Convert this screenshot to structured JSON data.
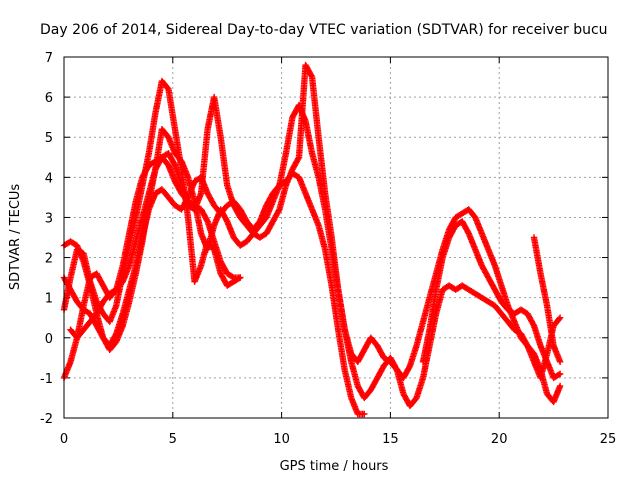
{
  "chart_data": {
    "type": "scatter",
    "title": "Day 206 of 2014, Sidereal Day-to-day VTEC variation (SDTVAR) for receiver bucu",
    "xlabel": "GPS time / hours",
    "ylabel": "SDTVAR / TECUs",
    "xlim": [
      0,
      25
    ],
    "ylim": [
      -2,
      7
    ],
    "xticks": [
      "0",
      "5",
      "10",
      "15",
      "20",
      "25"
    ],
    "yticks": [
      "-2",
      "-1",
      "0",
      "1",
      "2",
      "3",
      "4",
      "5",
      "6",
      "7"
    ],
    "grid": true,
    "marker": "+",
    "color": "#ff0000",
    "series": [
      {
        "points": [
          [
            0.0,
            0.7
          ],
          [
            0.3,
            1.5
          ],
          [
            0.6,
            2.2
          ],
          [
            0.9,
            2.1
          ],
          [
            1.2,
            1.4
          ],
          [
            1.5,
            0.9
          ],
          [
            1.8,
            0.6
          ],
          [
            2.1,
            0.4
          ],
          [
            2.4,
            0.8
          ],
          [
            2.7,
            1.6
          ],
          [
            3.0,
            2.3
          ],
          [
            3.3,
            3.0
          ],
          [
            3.6,
            3.8
          ],
          [
            3.9,
            4.6
          ],
          [
            4.2,
            5.6
          ],
          [
            4.5,
            6.4
          ],
          [
            4.8,
            6.2
          ],
          [
            5.1,
            5.2
          ],
          [
            5.4,
            4.2
          ],
          [
            5.7,
            3.0
          ],
          [
            6.0,
            1.4
          ],
          [
            6.3,
            1.8
          ],
          [
            6.6,
            2.4
          ],
          [
            6.9,
            2.2
          ],
          [
            7.2,
            1.6
          ],
          [
            7.5,
            1.3
          ],
          [
            7.8,
            1.4
          ],
          [
            8.1,
            1.5
          ]
        ]
      },
      {
        "points": [
          [
            0.0,
            -1.0
          ],
          [
            0.3,
            -0.6
          ],
          [
            0.6,
            0.0
          ],
          [
            0.9,
            0.8
          ],
          [
            1.2,
            1.5
          ],
          [
            1.5,
            1.6
          ],
          [
            1.8,
            1.3
          ],
          [
            2.1,
            1.0
          ],
          [
            2.4,
            1.2
          ],
          [
            2.7,
            1.8
          ],
          [
            3.0,
            2.6
          ],
          [
            3.3,
            3.4
          ],
          [
            3.6,
            4.0
          ],
          [
            3.9,
            4.3
          ],
          [
            4.2,
            4.4
          ],
          [
            4.5,
            4.5
          ],
          [
            4.8,
            4.6
          ],
          [
            5.1,
            4.3
          ],
          [
            5.4,
            3.8
          ],
          [
            5.7,
            3.3
          ],
          [
            6.0,
            3.2
          ],
          [
            6.3,
            3.6
          ],
          [
            6.6,
            5.2
          ],
          [
            6.9,
            6.0
          ],
          [
            7.2,
            5.0
          ],
          [
            7.5,
            3.8
          ],
          [
            7.8,
            3.3
          ],
          [
            8.1,
            3.0
          ],
          [
            8.4,
            2.8
          ],
          [
            8.7,
            2.6
          ],
          [
            9.0,
            2.5
          ],
          [
            9.3,
            2.6
          ],
          [
            9.6,
            2.9
          ],
          [
            9.9,
            3.2
          ],
          [
            10.2,
            3.8
          ],
          [
            10.5,
            4.2
          ],
          [
            10.8,
            4.5
          ],
          [
            11.1,
            6.8
          ],
          [
            11.4,
            6.5
          ],
          [
            11.7,
            5.0
          ],
          [
            12.0,
            3.6
          ],
          [
            12.3,
            2.5
          ],
          [
            12.6,
            1.2
          ],
          [
            12.9,
            0.2
          ],
          [
            13.2,
            -0.6
          ],
          [
            13.5,
            -1.2
          ],
          [
            13.8,
            -1.5
          ],
          [
            14.1,
            -1.3
          ],
          [
            14.4,
            -1.0
          ],
          [
            14.7,
            -0.7
          ],
          [
            15.0,
            -0.5
          ],
          [
            15.3,
            -0.8
          ],
          [
            15.6,
            -1.4
          ],
          [
            15.9,
            -1.7
          ],
          [
            16.2,
            -1.5
          ],
          [
            16.5,
            -1.0
          ],
          [
            16.8,
            -0.2
          ],
          [
            17.1,
            0.6
          ],
          [
            17.4,
            1.2
          ],
          [
            17.7,
            1.3
          ],
          [
            18.0,
            1.2
          ],
          [
            18.3,
            1.3
          ],
          [
            18.6,
            1.2
          ],
          [
            18.9,
            1.1
          ],
          [
            19.2,
            1.0
          ],
          [
            19.5,
            0.9
          ],
          [
            19.8,
            0.8
          ],
          [
            20.1,
            0.6
          ],
          [
            20.4,
            0.4
          ],
          [
            20.7,
            0.2
          ],
          [
            21.0,
            0.1
          ],
          [
            21.3,
            -0.2
          ],
          [
            21.6,
            -0.6
          ],
          [
            21.9,
            -1.0
          ],
          [
            22.2,
            -0.4
          ],
          [
            22.5,
            0.3
          ],
          [
            22.8,
            0.5
          ]
        ]
      },
      {
        "points": [
          [
            0.0,
            1.5
          ],
          [
            0.3,
            1.2
          ],
          [
            0.6,
            0.9
          ],
          [
            0.9,
            0.7
          ],
          [
            1.2,
            0.6
          ],
          [
            1.5,
            0.3
          ],
          [
            1.8,
            0.0
          ],
          [
            2.1,
            -0.2
          ],
          [
            2.4,
            0.1
          ],
          [
            2.7,
            0.6
          ],
          [
            3.0,
            1.2
          ],
          [
            3.3,
            1.8
          ],
          [
            3.6,
            2.5
          ],
          [
            3.9,
            3.2
          ],
          [
            4.2,
            3.6
          ],
          [
            4.5,
            3.7
          ],
          [
            4.8,
            3.5
          ],
          [
            5.1,
            3.3
          ],
          [
            5.4,
            3.2
          ],
          [
            5.7,
            3.5
          ],
          [
            6.0,
            3.9
          ],
          [
            6.3,
            4.0
          ],
          [
            6.6,
            3.6
          ],
          [
            6.9,
            3.3
          ],
          [
            7.2,
            3.1
          ],
          [
            7.5,
            3.3
          ],
          [
            7.8,
            3.4
          ],
          [
            8.1,
            3.2
          ],
          [
            8.4,
            2.9
          ],
          [
            8.7,
            2.7
          ],
          [
            9.0,
            2.9
          ],
          [
            9.3,
            3.3
          ],
          [
            9.6,
            3.6
          ],
          [
            9.9,
            3.8
          ],
          [
            10.2,
            3.9
          ],
          [
            10.5,
            4.1
          ],
          [
            10.8,
            4.0
          ],
          [
            11.1,
            3.6
          ],
          [
            11.4,
            3.2
          ],
          [
            11.7,
            2.8
          ],
          [
            12.0,
            2.2
          ],
          [
            12.3,
            1.3
          ],
          [
            12.6,
            0.2
          ],
          [
            12.9,
            -0.8
          ],
          [
            13.2,
            -1.5
          ],
          [
            13.5,
            -1.9
          ],
          [
            13.8,
            -1.9
          ]
        ]
      },
      {
        "points": [
          [
            0.0,
            2.3
          ],
          [
            0.3,
            2.4
          ],
          [
            0.6,
            2.3
          ],
          [
            0.9,
            1.9
          ],
          [
            1.2,
            1.3
          ],
          [
            1.5,
            0.6
          ],
          [
            1.8,
            0.0
          ],
          [
            2.1,
            -0.3
          ],
          [
            2.4,
            -0.1
          ],
          [
            2.7,
            0.3
          ],
          [
            3.0,
            0.9
          ],
          [
            3.3,
            1.6
          ],
          [
            3.6,
            2.4
          ],
          [
            3.9,
            3.4
          ],
          [
            4.2,
            4.2
          ],
          [
            4.5,
            5.2
          ],
          [
            4.8,
            5.0
          ],
          [
            5.1,
            4.6
          ],
          [
            5.4,
            4.4
          ],
          [
            5.7,
            4.0
          ],
          [
            6.0,
            3.4
          ],
          [
            6.3,
            2.6
          ],
          [
            6.6,
            2.2
          ],
          [
            6.9,
            2.8
          ],
          [
            7.2,
            3.2
          ],
          [
            7.5,
            2.9
          ],
          [
            7.8,
            2.5
          ],
          [
            8.1,
            2.3
          ],
          [
            8.4,
            2.4
          ],
          [
            8.7,
            2.6
          ],
          [
            9.0,
            2.8
          ],
          [
            9.3,
            3.0
          ],
          [
            9.6,
            3.4
          ],
          [
            9.9,
            3.8
          ],
          [
            10.2,
            4.6
          ],
          [
            10.5,
            5.5
          ],
          [
            10.8,
            5.8
          ],
          [
            11.1,
            5.4
          ],
          [
            11.4,
            4.6
          ],
          [
            11.7,
            4.0
          ],
          [
            12.0,
            3.2
          ],
          [
            12.3,
            2.2
          ],
          [
            12.6,
            1.2
          ],
          [
            12.9,
            0.2
          ],
          [
            13.2,
            -0.4
          ],
          [
            13.5,
            -0.6
          ],
          [
            13.8,
            -0.3
          ],
          [
            14.1,
            0.0
          ],
          [
            14.4,
            -0.2
          ],
          [
            14.7,
            -0.5
          ],
          [
            15.0,
            -0.6
          ],
          [
            15.3,
            -0.8
          ],
          [
            15.6,
            -1.0
          ],
          [
            15.9,
            -0.7
          ],
          [
            16.2,
            -0.2
          ],
          [
            16.5,
            0.4
          ],
          [
            16.8,
            1.0
          ],
          [
            17.1,
            1.6
          ],
          [
            17.4,
            2.2
          ],
          [
            17.7,
            2.7
          ],
          [
            18.0,
            3.0
          ],
          [
            18.3,
            3.1
          ],
          [
            18.6,
            3.2
          ],
          [
            18.9,
            3.0
          ],
          [
            19.2,
            2.6
          ],
          [
            19.5,
            2.2
          ],
          [
            19.8,
            1.8
          ],
          [
            20.1,
            1.3
          ],
          [
            20.4,
            0.8
          ],
          [
            20.7,
            0.4
          ],
          [
            21.0,
            0.0
          ],
          [
            21.3,
            -0.2
          ],
          [
            21.6,
            -0.4
          ],
          [
            21.9,
            -0.8
          ],
          [
            22.2,
            -1.4
          ],
          [
            22.5,
            -1.6
          ],
          [
            22.8,
            -1.2
          ]
        ]
      },
      {
        "points": [
          [
            0.3,
            0.2
          ],
          [
            0.6,
            0.0
          ],
          [
            0.9,
            0.2
          ],
          [
            1.2,
            0.4
          ],
          [
            1.5,
            0.6
          ],
          [
            1.8,
            0.9
          ],
          [
            2.1,
            1.1
          ],
          [
            2.4,
            1.2
          ],
          [
            2.7,
            1.4
          ],
          [
            3.0,
            1.8
          ],
          [
            3.3,
            2.4
          ],
          [
            3.6,
            3.0
          ],
          [
            3.9,
            3.6
          ],
          [
            4.2,
            4.2
          ],
          [
            4.5,
            4.5
          ],
          [
            4.8,
            4.3
          ],
          [
            5.1,
            3.9
          ],
          [
            5.4,
            3.6
          ],
          [
            5.7,
            3.4
          ],
          [
            6.0,
            3.3
          ],
          [
            6.3,
            3.2
          ],
          [
            6.6,
            2.9
          ],
          [
            6.9,
            2.4
          ],
          [
            7.2,
            1.9
          ],
          [
            7.5,
            1.6
          ],
          [
            7.8,
            1.5
          ],
          [
            8.1,
            1.5
          ]
        ]
      },
      {
        "points": [
          [
            16.5,
            -0.6
          ],
          [
            16.8,
            0.2
          ],
          [
            17.1,
            1.2
          ],
          [
            17.4,
            2.0
          ],
          [
            17.7,
            2.5
          ],
          [
            18.0,
            2.8
          ],
          [
            18.3,
            2.9
          ],
          [
            18.6,
            2.6
          ],
          [
            18.9,
            2.2
          ],
          [
            19.2,
            1.8
          ],
          [
            19.5,
            1.5
          ],
          [
            19.8,
            1.2
          ],
          [
            20.1,
            0.9
          ],
          [
            20.4,
            0.7
          ],
          [
            20.7,
            0.6
          ],
          [
            21.0,
            0.7
          ],
          [
            21.3,
            0.6
          ],
          [
            21.6,
            0.3
          ],
          [
            21.9,
            -0.2
          ],
          [
            22.2,
            -0.6
          ],
          [
            22.5,
            -1.0
          ],
          [
            22.8,
            -0.9
          ]
        ]
      },
      {
        "points": [
          [
            21.6,
            2.5
          ],
          [
            21.9,
            1.6
          ],
          [
            22.2,
            0.8
          ],
          [
            22.5,
            -0.2
          ],
          [
            22.8,
            -0.6
          ]
        ]
      }
    ]
  }
}
